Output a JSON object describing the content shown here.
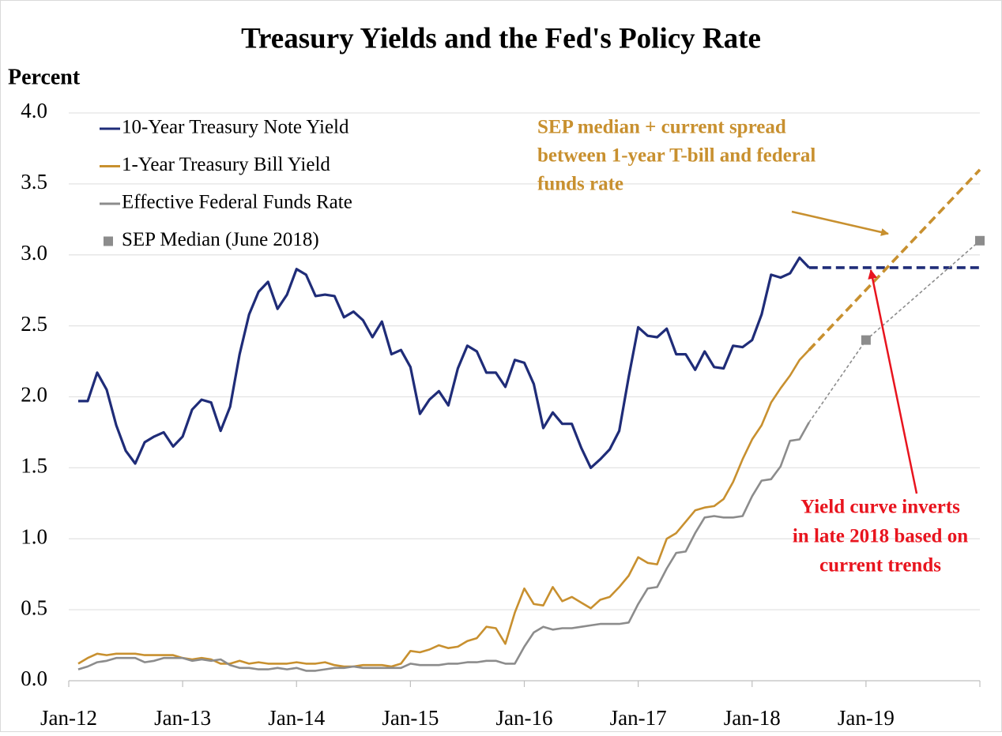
{
  "chart_data": {
    "type": "line",
    "title": "Treasury Yields and the Fed's Policy Rate",
    "ylabel": "Percent",
    "xlim": [
      0,
      96
    ],
    "xticks": [
      {
        "value": 0,
        "label": "Jan-12"
      },
      {
        "value": 12,
        "label": "Jan-13"
      },
      {
        "value": 24,
        "label": "Jan-14"
      },
      {
        "value": 36,
        "label": "Jan-15"
      },
      {
        "value": 48,
        "label": "Jan-16"
      },
      {
        "value": 60,
        "label": "Jan-17"
      },
      {
        "value": 72,
        "label": "Jan-18"
      },
      {
        "value": 84,
        "label": "Jan-19"
      }
    ],
    "ylim": [
      0,
      4
    ],
    "yticks": [
      {
        "value": 0,
        "label": "0.0"
      },
      0.5,
      {
        "value": 1,
        "label": "1.0"
      },
      1.5,
      {
        "value": 2,
        "label": "2.0"
      },
      2.5,
      {
        "value": 3,
        "label": "3.0"
      },
      3.5,
      {
        "value": 4,
        "label": "4.0"
      }
    ],
    "grid": true,
    "legend": "upper left",
    "x": [
      1,
      2,
      3,
      4,
      5,
      6,
      7,
      8,
      9,
      10,
      11,
      12,
      13,
      14,
      15,
      16,
      17,
      18,
      19,
      20,
      21,
      22,
      23,
      24,
      25,
      26,
      27,
      28,
      29,
      30,
      31,
      32,
      33,
      34,
      35,
      36,
      37,
      38,
      39,
      40,
      41,
      42,
      43,
      44,
      45,
      46,
      47,
      48,
      49,
      50,
      51,
      52,
      53,
      54,
      55,
      56,
      57,
      58,
      59,
      60,
      61,
      62,
      63,
      64,
      65,
      66,
      67,
      68,
      69,
      70,
      71,
      72,
      73,
      74,
      75,
      76,
      77,
      78
    ],
    "series": [
      {
        "name": "10-Year Treasury Note Yield",
        "color": "#1f2c78",
        "values": [
          1.97,
          1.97,
          2.17,
          2.05,
          1.8,
          1.62,
          1.53,
          1.68,
          1.72,
          1.75,
          1.65,
          1.72,
          1.91,
          1.98,
          1.96,
          1.76,
          1.93,
          2.3,
          2.58,
          2.74,
          2.81,
          2.62,
          2.72,
          2.9,
          2.86,
          2.71,
          2.72,
          2.71,
          2.56,
          2.6,
          2.54,
          2.42,
          2.53,
          2.3,
          2.33,
          2.21,
          1.88,
          1.98,
          2.04,
          1.94,
          2.2,
          2.36,
          2.32,
          2.17,
          2.17,
          2.07,
          2.26,
          2.24,
          2.09,
          1.78,
          1.89,
          1.81,
          1.81,
          1.64,
          1.5,
          1.56,
          1.63,
          1.76,
          2.14,
          2.49,
          2.43,
          2.42,
          2.48,
          2.3,
          2.3,
          2.19,
          2.32,
          2.21,
          2.2,
          2.36,
          2.35,
          2.4,
          2.58,
          2.86,
          2.84,
          2.87,
          2.98,
          2.91
        ]
      },
      {
        "name": "1-Year Treasury Bill Yield",
        "color": "#c8902f",
        "values": [
          0.12,
          0.16,
          0.19,
          0.18,
          0.19,
          0.19,
          0.19,
          0.18,
          0.18,
          0.18,
          0.18,
          0.16,
          0.15,
          0.16,
          0.15,
          0.12,
          0.12,
          0.14,
          0.12,
          0.13,
          0.12,
          0.12,
          0.12,
          0.13,
          0.12,
          0.12,
          0.13,
          0.11,
          0.1,
          0.1,
          0.11,
          0.11,
          0.11,
          0.1,
          0.12,
          0.21,
          0.2,
          0.22,
          0.25,
          0.23,
          0.24,
          0.28,
          0.3,
          0.38,
          0.37,
          0.26,
          0.48,
          0.65,
          0.54,
          0.53,
          0.66,
          0.56,
          0.59,
          0.55,
          0.51,
          0.57,
          0.59,
          0.66,
          0.74,
          0.87,
          0.83,
          0.82,
          1.0,
          1.04,
          1.12,
          1.2,
          1.22,
          1.23,
          1.28,
          1.4,
          1.56,
          1.7,
          1.8,
          1.96,
          2.06,
          2.15,
          2.26,
          2.33
        ]
      },
      {
        "name": "Effective Federal Funds Rate",
        "color": "#8c8c8c",
        "values": [
          0.08,
          0.1,
          0.13,
          0.14,
          0.16,
          0.16,
          0.16,
          0.13,
          0.14,
          0.16,
          0.16,
          0.16,
          0.14,
          0.15,
          0.14,
          0.15,
          0.11,
          0.09,
          0.09,
          0.08,
          0.08,
          0.09,
          0.08,
          0.09,
          0.07,
          0.07,
          0.08,
          0.09,
          0.09,
          0.1,
          0.09,
          0.09,
          0.09,
          0.09,
          0.09,
          0.12,
          0.11,
          0.11,
          0.11,
          0.12,
          0.12,
          0.13,
          0.13,
          0.14,
          0.14,
          0.12,
          0.12,
          0.24,
          0.34,
          0.38,
          0.36,
          0.37,
          0.37,
          0.38,
          0.39,
          0.4,
          0.4,
          0.4,
          0.41,
          0.54,
          0.65,
          0.66,
          0.79,
          0.9,
          0.91,
          1.04,
          1.15,
          1.16,
          1.15,
          1.15,
          1.16,
          1.3,
          1.41,
          1.42,
          1.51,
          1.69,
          1.7,
          1.82
        ]
      },
      {
        "name": "SEP Median (June 2018)",
        "color": "#8c8c8c",
        "marker": "square",
        "x": [
          84,
          96
        ],
        "values": [
          2.4,
          3.1
        ]
      }
    ],
    "projections": [
      {
        "color": "#1f2c78",
        "x": [
          78,
          96
        ],
        "values": [
          2.91,
          2.91
        ]
      },
      {
        "color": "#c8902f",
        "x": [
          78,
          96
        ],
        "values": [
          2.33,
          3.6
        ]
      },
      {
        "color": "#8c8c8c",
        "x": [
          78,
          84,
          96
        ],
        "values": [
          1.82,
          2.4,
          3.1
        ]
      }
    ],
    "annotations": [
      {
        "text": [
          "SEP median + current spread",
          "between 1-year T-bill and federal",
          "funds rate"
        ],
        "color": "#c8902f"
      },
      {
        "text": [
          "Yield curve inverts",
          "in late 2018 based on",
          "current trends"
        ],
        "color": "#e8141e"
      }
    ]
  }
}
